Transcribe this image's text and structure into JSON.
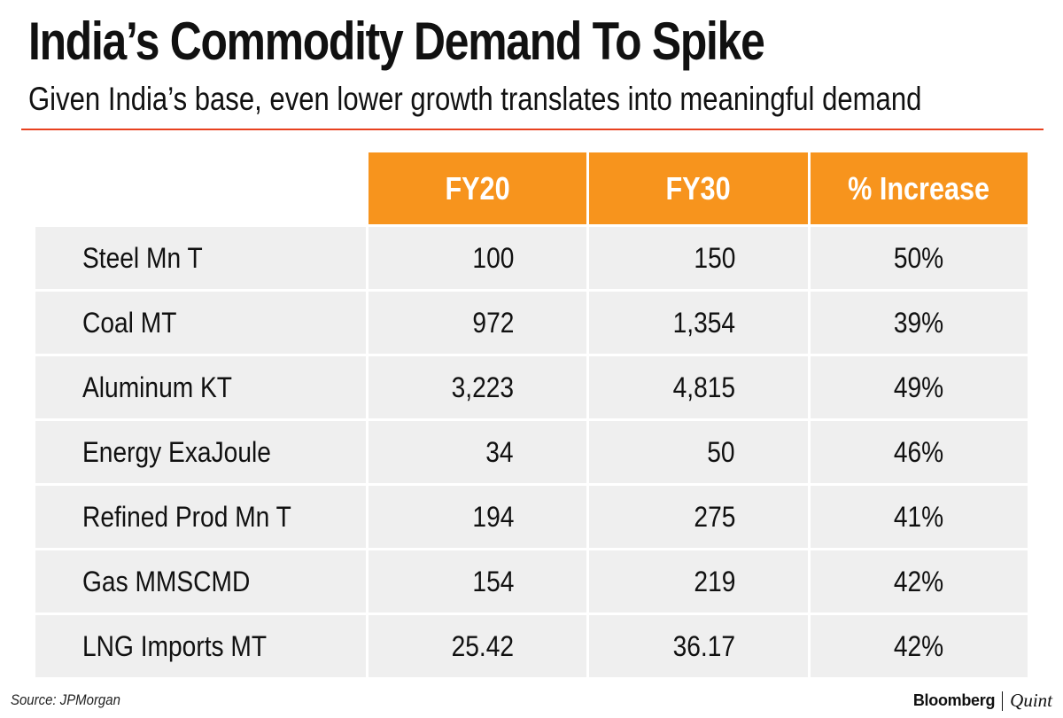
{
  "title": "India’s Commodity Demand To Spike",
  "subtitle": "Given India’s base, even lower growth translates into meaningful demand",
  "source": "Source: JPMorgan",
  "logo": {
    "brand": "Bloomberg",
    "partner": "Quint"
  },
  "colors": {
    "accent_rule": "#e8411f",
    "header_fill": "#f7941d",
    "row_fill": "#efefef"
  },
  "chart_data": {
    "type": "table",
    "title": "India’s Commodity Demand To Spike",
    "subtitle": "Given India’s base, even lower growth translates into meaningful demand",
    "columns": [
      "",
      "FY20",
      "FY30",
      "% Increase"
    ],
    "rows": [
      {
        "label": "Steel Mn T",
        "fy20": "100",
        "fy30": "150",
        "increase": "50%"
      },
      {
        "label": "Coal MT",
        "fy20": "972",
        "fy30": "1,354",
        "increase": "39%"
      },
      {
        "label": "Aluminum KT",
        "fy20": "3,223",
        "fy30": "4,815",
        "increase": "49%"
      },
      {
        "label": "Energy ExaJoule",
        "fy20": "34",
        "fy30": "50",
        "increase": "46%"
      },
      {
        "label": "Refined Prod Mn T",
        "fy20": "194",
        "fy30": "275",
        "increase": "41%"
      },
      {
        "label": "Gas MMSCMD",
        "fy20": "154",
        "fy30": "219",
        "increase": "42%"
      },
      {
        "label": "LNG Imports MT",
        "fy20": "25.42",
        "fy30": "36.17",
        "increase": "42%"
      }
    ],
    "source": "Source: JPMorgan"
  }
}
